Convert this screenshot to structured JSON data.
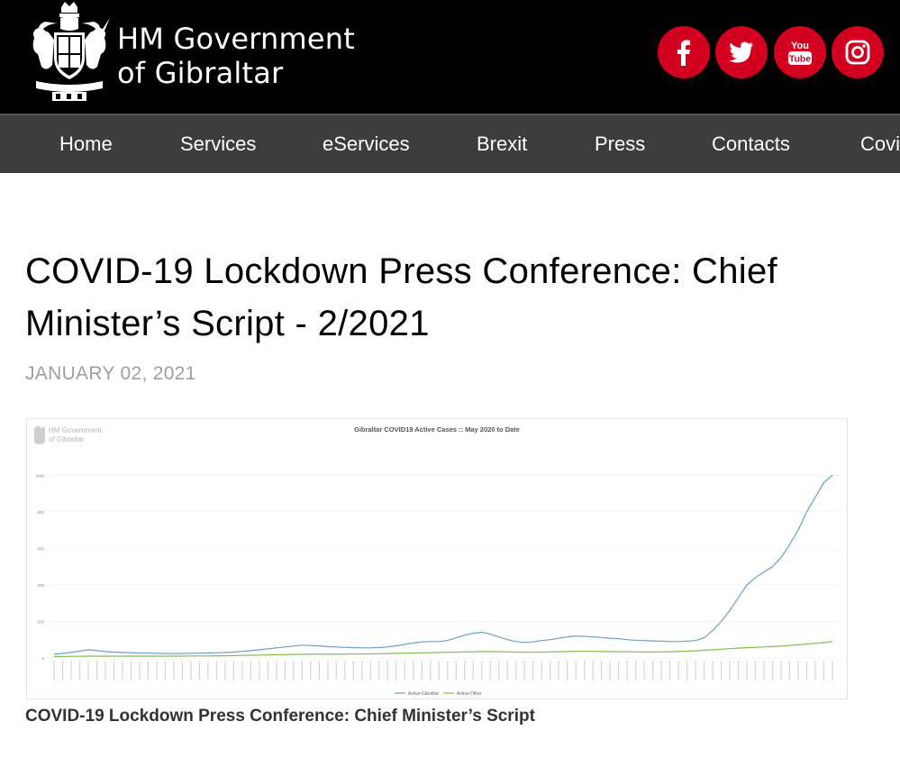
{
  "header": {
    "brand_line1": "HM Government",
    "brand_line2": "of Gibraltar",
    "accent_color": "#d4001f",
    "social": [
      {
        "name": "facebook-icon",
        "glyph": "f"
      },
      {
        "name": "twitter-icon",
        "glyph": "twitter bird"
      },
      {
        "name": "youtube-icon",
        "glyph_top": "You",
        "glyph_bottom": "Tube"
      },
      {
        "name": "instagram-icon",
        "glyph": "camera"
      }
    ]
  },
  "nav": {
    "items": [
      "Home",
      "Services",
      "eServices",
      "Brexit",
      "Press",
      "Contacts",
      "Covid"
    ]
  },
  "article": {
    "title": "COVID-19 Lockdown Press Conference: Chief Minister’s Script - 2/2021",
    "date": "JANUARY 02, 2021",
    "caption": "COVID-19 Lockdown Press Conference: Chief Minister’s Script"
  },
  "figure": {
    "watermark_line1": "HM Government",
    "watermark_line2": "of Gibraltar",
    "chart_data": {
      "type": "line",
      "title": "Gibraltar COVID19  Active Cases :: May 2020 to Date",
      "y_ticks": [
        0,
        200,
        400,
        600,
        800,
        1000
      ],
      "ylim": [
        0,
        1100
      ],
      "legend_placement": "bottom-center",
      "grid": true,
      "series": [
        {
          "name": "Active Gibraltar",
          "color": "#6a9fc4",
          "values": [
            20,
            25,
            30,
            38,
            45,
            40,
            35,
            32,
            30,
            28,
            27,
            26,
            25,
            24,
            24,
            24,
            25,
            26,
            27,
            28,
            30,
            32,
            36,
            40,
            45,
            50,
            55,
            60,
            65,
            70,
            68,
            66,
            62,
            60,
            58,
            56,
            55,
            55,
            57,
            60,
            66,
            74,
            82,
            88,
            90,
            90,
            95,
            110,
            125,
            135,
            140,
            130,
            115,
            100,
            90,
            85,
            88,
            95,
            100,
            108,
            115,
            120,
            118,
            115,
            112,
            108,
            105,
            100,
            97,
            95,
            93,
            92,
            90,
            90,
            92,
            95,
            110,
            150,
            200,
            260,
            330,
            400,
            440,
            470,
            500,
            550,
            620,
            700,
            800,
            880,
            960,
            1000
          ]
        },
        {
          "name": "Active Other",
          "color": "#7fbf4d",
          "values": [
            8,
            8,
            9,
            9,
            10,
            10,
            10,
            10,
            10,
            10,
            10,
            10,
            10,
            10,
            10,
            10,
            11,
            11,
            11,
            12,
            12,
            13,
            14,
            15,
            16,
            17,
            18,
            18,
            19,
            20,
            20,
            20,
            20,
            20,
            21,
            21,
            22,
            22,
            23,
            24,
            25,
            26,
            27,
            28,
            29,
            30,
            31,
            32,
            33,
            34,
            35,
            35,
            34,
            33,
            32,
            31,
            31,
            32,
            33,
            34,
            35,
            36,
            36,
            36,
            35,
            35,
            34,
            34,
            33,
            33,
            33,
            33,
            34,
            35,
            37,
            39,
            42,
            45,
            48,
            51,
            54,
            56,
            58,
            60,
            62,
            65,
            68,
            72,
            76,
            80,
            85,
            90
          ]
        }
      ]
    }
  }
}
